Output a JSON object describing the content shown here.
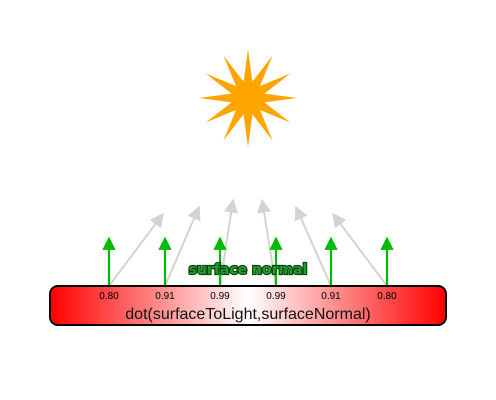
{
  "diagram": {
    "light_source": "sun-icon",
    "normal_label": "surface normal",
    "bar_label": "dot(surfaceToLight,surfaceNormal)",
    "dot_values": [
      "0.80",
      "0.91",
      "0.99",
      "0.99",
      "0.91",
      "0.80"
    ],
    "colors": {
      "sun": "#ffa500",
      "normal_arrow": "#00bb00",
      "light_arrow": "#d3d3d3",
      "gradient_edge": "#ff0000",
      "gradient_center": "#ffffff",
      "bar_border": "#000000"
    }
  }
}
